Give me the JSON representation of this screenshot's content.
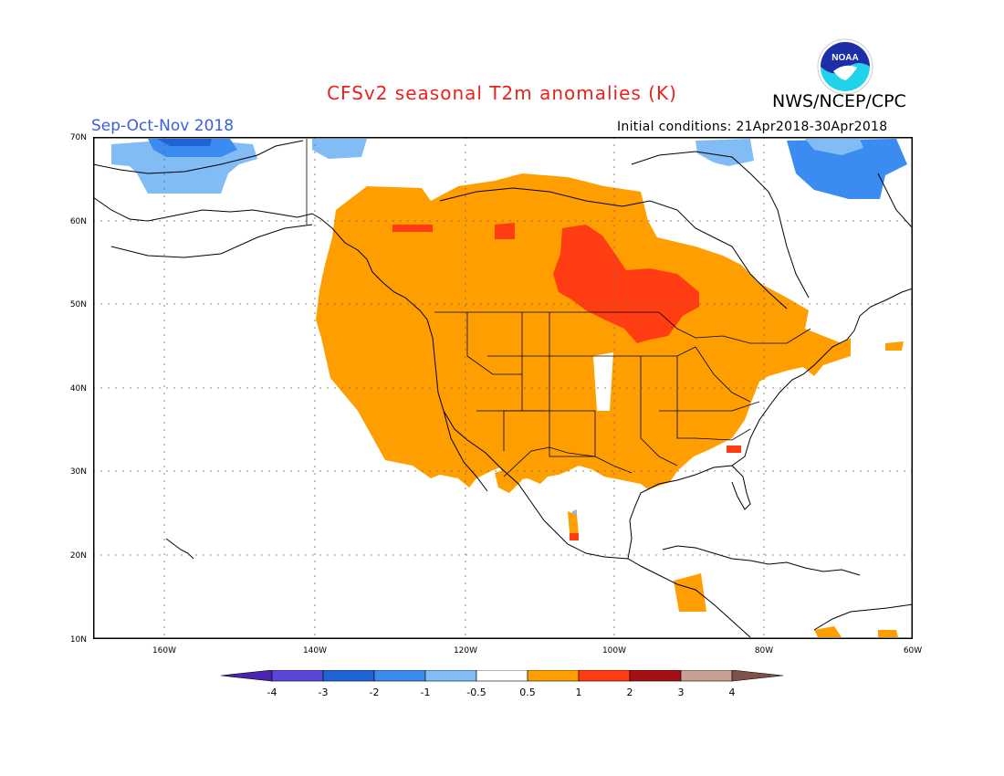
{
  "header": {
    "title": "CFSv2 seasonal T2m anomalies (K)",
    "season": "Sep-Oct-Nov 2018",
    "initial_conditions": "Initial conditions: 21Apr2018-30Apr2018",
    "organization": "NWS/NCEP/CPC",
    "logo_text": "NOAA"
  },
  "map": {
    "lat_labels": [
      "70N",
      "60N",
      "50N",
      "40N",
      "30N",
      "20N",
      "10N"
    ],
    "lon_labels": [
      "160W",
      "140W",
      "120W",
      "100W",
      "80W",
      "60W"
    ]
  },
  "colorbar": {
    "labels": [
      "-4",
      "-3",
      "-2",
      "-1",
      "-0.5",
      "0.5",
      "1",
      "2",
      "3",
      "4"
    ],
    "colors": [
      "#4a24b4",
      "#5b46dc",
      "#1f64d6",
      "#3b8cf0",
      "#82bcf5",
      "#ffffff",
      "#ff9e00",
      "#ff3c12",
      "#a60f13",
      "#c8a093",
      "#7e5247"
    ]
  },
  "colors": {
    "title": "#e8231c",
    "season": "#3a5de6",
    "anomaly_0_5_to_1": "#ff9e00",
    "anomaly_1_to_2": "#ff3c12",
    "anomaly_neg_0_5_to_neg_1": "#82bcf5",
    "anomaly_neg_1_to_neg_2": "#3b8cf0",
    "anomaly_neg_2_to_neg_3": "#1f64d6"
  }
}
